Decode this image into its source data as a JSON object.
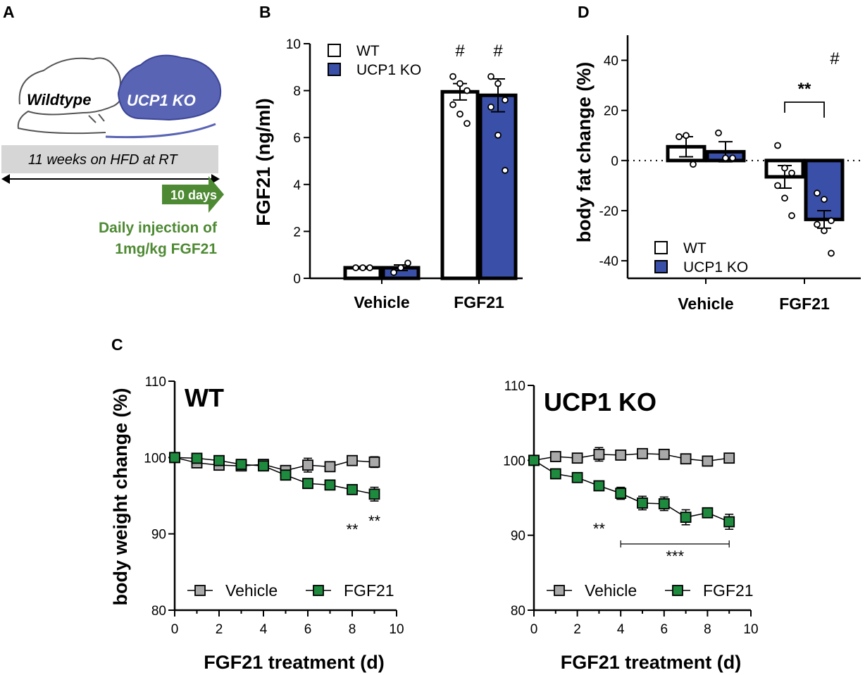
{
  "colors": {
    "wt": "#ffffff",
    "ko": "#3a4fa8",
    "vehicle": "#a9a9a9",
    "fgf21": "#1e8a3e",
    "arrow_green": "#4e8a33",
    "hfd_bar": "#d6d6d6"
  },
  "panel_labels": {
    "a": "A",
    "b": "B",
    "c": "C",
    "d": "D"
  },
  "schematic": {
    "wildtype_label": "Wildtype",
    "ko_label": "UCP1 KO",
    "hfd_label": "11 weeks on HFD at RT",
    "days_label": "10 days",
    "injection_line1": "Daily injection of",
    "injection_line2": "1mg/kg FGF21"
  },
  "chart_data": [
    {
      "id": "B",
      "type": "bar",
      "title": "",
      "ylabel": "FGF21 (ng/ml)",
      "xlabel": "",
      "ylim": [
        0,
        10
      ],
      "yticks": [
        "0",
        "2",
        "4",
        "6",
        "8",
        "10"
      ],
      "categories": [
        "Vehicle",
        "FGF21"
      ],
      "legend": [
        "WT",
        "UCP1 KO"
      ],
      "series": [
        {
          "name": "WT",
          "values": [
            0.45,
            7.95
          ],
          "sem": [
            0.05,
            0.35
          ],
          "points": [
            [
              0.45,
              0.45,
              0.45
            ],
            [
              8.6,
              8.3,
              8.0,
              7.4,
              7.0,
              6.6
            ]
          ]
        },
        {
          "name": "UCP1 KO",
          "values": [
            0.45,
            7.8
          ],
          "sem": [
            0.12,
            0.7
          ],
          "points": [
            [
              0.25,
              0.45,
              0.65
            ],
            [
              8.6,
              8.3,
              7.6,
              7.3,
              6.1,
              4.6
            ]
          ]
        }
      ],
      "annotations": [
        {
          "text": "#",
          "category": "FGF21",
          "series": "WT"
        },
        {
          "text": "#",
          "category": "FGF21",
          "series": "UCP1 KO"
        }
      ]
    },
    {
      "id": "D",
      "type": "bar",
      "title": "",
      "ylabel": "body fat change (%)",
      "xlabel": "",
      "ylim": [
        -47,
        50
      ],
      "yticks": [
        "40",
        "20",
        "0",
        "-20",
        "-40"
      ],
      "categories": [
        "Vehicle",
        "FGF21"
      ],
      "legend": [
        "WT",
        "UCP1 KO"
      ],
      "series": [
        {
          "name": "WT",
          "values": [
            5.5,
            -6.5
          ],
          "sem": [
            4.0,
            4.5
          ],
          "points": [
            [
              9.5,
              10.0,
              -1.5
            ],
            [
              6.0,
              -3.0,
              -5.0,
              -10.0,
              -15.0,
              -22.0
            ]
          ]
        },
        {
          "name": "UCP1 KO",
          "values": [
            3.5,
            -23.5
          ],
          "sem": [
            4.0,
            3.5
          ],
          "points": [
            [
              11.0,
              1.0,
              1.0
            ],
            [
              -13.0,
              -15.5,
              -24.0,
              -25.5,
              -28.0,
              -37.0
            ]
          ]
        }
      ],
      "zero_line": "dotted",
      "annotations": [
        {
          "text": "**",
          "category": "FGF21",
          "between": [
            "WT",
            "UCP1 KO"
          ]
        },
        {
          "text": "#",
          "category": "FGF21",
          "series": "UCP1 KO"
        }
      ]
    },
    {
      "id": "C-WT",
      "type": "line",
      "title": "WT",
      "ylabel": "body weight change (%)",
      "xlabel": "FGF21 treatment (d)",
      "xlim": [
        0,
        10
      ],
      "ylim": [
        80,
        110
      ],
      "xticks": [
        "0",
        "2",
        "4",
        "6",
        "8",
        "10"
      ],
      "yticks": [
        "80",
        "90",
        "100",
        "110"
      ],
      "x": [
        0,
        1,
        2,
        3,
        4,
        5,
        6,
        7,
        8,
        9
      ],
      "legend": [
        "Vehicle",
        "FGF21"
      ],
      "series": [
        {
          "name": "Vehicle",
          "values": [
            100.0,
            99.3,
            99.0,
            98.9,
            99.1,
            98.3,
            99.0,
            98.8,
            99.6,
            99.4
          ],
          "sem": [
            0.2,
            0.4,
            0.4,
            0.3,
            0.3,
            0.5,
            0.9,
            0.5,
            0.5,
            0.7
          ]
        },
        {
          "name": "FGF21",
          "values": [
            100.0,
            99.9,
            99.6,
            99.1,
            98.9,
            97.7,
            96.6,
            96.4,
            95.8,
            95.2
          ],
          "sem": [
            0.2,
            0.3,
            0.5,
            0.4,
            0.4,
            0.5,
            0.4,
            0.4,
            0.4,
            0.9
          ]
        }
      ],
      "annotations": [
        {
          "text": "**",
          "x": 8
        },
        {
          "text": "**",
          "x": 9
        }
      ]
    },
    {
      "id": "C-KO",
      "type": "line",
      "title": "UCP1 KO",
      "ylabel": "",
      "xlabel": "FGF21 treatment (d)",
      "xlim": [
        0,
        10
      ],
      "ylim": [
        80,
        110
      ],
      "xticks": [
        "0",
        "2",
        "4",
        "6",
        "8",
        "10"
      ],
      "yticks": [
        "80",
        "90",
        "100",
        "110"
      ],
      "x": [
        0,
        1,
        2,
        3,
        4,
        5,
        6,
        7,
        8,
        9
      ],
      "legend": [
        "Vehicle",
        "FGF21"
      ],
      "series": [
        {
          "name": "Vehicle",
          "values": [
            100.0,
            100.5,
            100.3,
            100.8,
            100.7,
            100.9,
            100.8,
            100.2,
            99.9,
            100.3
          ],
          "sem": [
            0.2,
            0.5,
            0.5,
            0.9,
            0.5,
            0.5,
            0.5,
            0.5,
            0.5,
            0.5
          ]
        },
        {
          "name": "FGF21",
          "values": [
            100.0,
            98.2,
            97.7,
            96.6,
            95.6,
            94.3,
            94.2,
            92.4,
            93.0,
            91.8
          ],
          "sem": [
            0.2,
            0.3,
            0.4,
            0.6,
            0.8,
            0.9,
            0.9,
            1.0,
            0.5,
            1.0
          ]
        }
      ],
      "annotations": [
        {
          "text": "**",
          "x": 3
        },
        {
          "text": "***",
          "x_range": [
            4,
            9
          ]
        }
      ]
    }
  ]
}
